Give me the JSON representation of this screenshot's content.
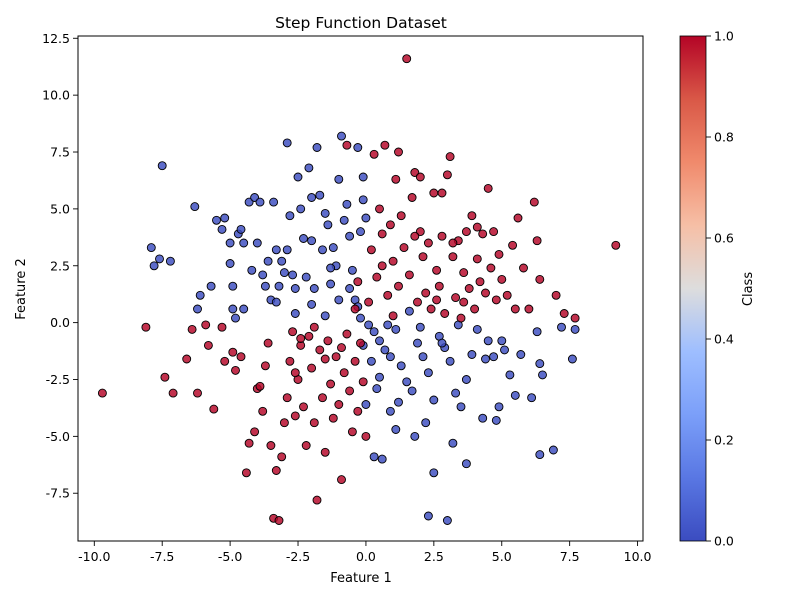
{
  "chart_data": {
    "type": "scatter",
    "title": "Step Function Dataset",
    "xlabel": "Feature 1",
    "ylabel": "Feature 2",
    "xlim": [
      -10.6,
      10.2
    ],
    "ylim": [
      -9.6,
      12.6
    ],
    "xticks": [
      -10.0,
      -7.5,
      -5.0,
      -2.5,
      0.0,
      2.5,
      5.0,
      7.5,
      10.0
    ],
    "yticks": [
      -7.5,
      -5.0,
      -2.5,
      0.0,
      2.5,
      5.0,
      7.5,
      10.0,
      12.5
    ],
    "grid": false,
    "colorbar": {
      "label": "Class",
      "colormap": "coolwarm",
      "range": [
        0.0,
        1.0
      ],
      "ticks": [
        0.0,
        0.2,
        0.4,
        0.6,
        0.8,
        1.0
      ],
      "low_color": "#3b4cc0",
      "mid_color": "#dddddd",
      "high_color": "#b40426"
    },
    "marker_edge_color": "#000000",
    "class_0_points": [
      [
        -7.5,
        6.9
      ],
      [
        -7.9,
        3.3
      ],
      [
        -7.8,
        2.5
      ],
      [
        -7.6,
        2.8
      ],
      [
        -7.2,
        2.7
      ],
      [
        -6.3,
        5.1
      ],
      [
        -6.1,
        1.2
      ],
      [
        -6.2,
        0.6
      ],
      [
        -5.7,
        1.6
      ],
      [
        -5.5,
        4.5
      ],
      [
        -5.3,
        4.1
      ],
      [
        -5.2,
        4.6
      ],
      [
        -5.0,
        3.5
      ],
      [
        -5.0,
        2.6
      ],
      [
        -4.9,
        1.6
      ],
      [
        -4.9,
        0.6
      ],
      [
        -4.8,
        0.2
      ],
      [
        -4.7,
        3.9
      ],
      [
        -4.6,
        4.1
      ],
      [
        -4.5,
        3.5
      ],
      [
        -4.5,
        0.6
      ],
      [
        -4.3,
        5.3
      ],
      [
        -4.2,
        2.3
      ],
      [
        -4.1,
        5.5
      ],
      [
        -4.0,
        3.5
      ],
      [
        -3.9,
        5.3
      ],
      [
        -3.8,
        2.1
      ],
      [
        -3.7,
        1.6
      ],
      [
        -3.6,
        2.7
      ],
      [
        -3.5,
        1.0
      ],
      [
        -3.4,
        5.3
      ],
      [
        -3.3,
        3.2
      ],
      [
        -3.2,
        1.6
      ],
      [
        -3.1,
        2.7
      ],
      [
        -3.0,
        2.2
      ],
      [
        -2.9,
        3.2
      ],
      [
        -2.9,
        7.9
      ],
      [
        -2.8,
        4.7
      ],
      [
        -2.7,
        2.1
      ],
      [
        -2.6,
        1.5
      ],
      [
        -2.5,
        6.4
      ],
      [
        -2.4,
        5.0
      ],
      [
        -2.3,
        3.7
      ],
      [
        -2.2,
        2.0
      ],
      [
        -2.1,
        6.8
      ],
      [
        -2.0,
        5.5
      ],
      [
        -2.0,
        3.6
      ],
      [
        -1.9,
        1.5
      ],
      [
        -1.8,
        7.7
      ],
      [
        -1.7,
        5.6
      ],
      [
        -1.6,
        3.2
      ],
      [
        -1.5,
        4.8
      ],
      [
        -1.4,
        4.3
      ],
      [
        -1.3,
        1.7
      ],
      [
        -1.2,
        3.3
      ],
      [
        -1.1,
        2.5
      ],
      [
        -1.0,
        6.3
      ],
      [
        -0.9,
        8.2
      ],
      [
        -0.8,
        4.5
      ],
      [
        -0.7,
        5.2
      ],
      [
        -0.6,
        3.8
      ],
      [
        -0.5,
        2.3
      ],
      [
        -0.4,
        1.0
      ],
      [
        -0.3,
        7.7
      ],
      [
        -0.2,
        4.0
      ],
      [
        -0.1,
        6.4
      ],
      [
        -0.1,
        5.4
      ],
      [
        0.0,
        4.6
      ],
      [
        -0.3,
        0.7
      ],
      [
        -0.2,
        0.2
      ],
      [
        0.1,
        -0.1
      ],
      [
        0.3,
        -0.4
      ],
      [
        0.5,
        -0.8
      ],
      [
        0.7,
        -1.2
      ],
      [
        0.9,
        -1.5
      ],
      [
        1.1,
        -0.3
      ],
      [
        1.3,
        -1.9
      ],
      [
        1.5,
        -2.6
      ],
      [
        1.7,
        -3.0
      ],
      [
        1.9,
        -0.9
      ],
      [
        2.1,
        -1.5
      ],
      [
        2.3,
        -2.2
      ],
      [
        2.5,
        -3.4
      ],
      [
        2.7,
        -0.6
      ],
      [
        2.9,
        -1.1
      ],
      [
        3.1,
        -1.7
      ],
      [
        3.3,
        -3.1
      ],
      [
        3.5,
        -3.7
      ],
      [
        3.7,
        -2.5
      ],
      [
        3.9,
        -1.4
      ],
      [
        4.1,
        -0.3
      ],
      [
        4.3,
        -4.2
      ],
      [
        4.5,
        -0.8
      ],
      [
        4.7,
        -1.5
      ],
      [
        4.9,
        -3.7
      ],
      [
        5.1,
        -1.2
      ],
      [
        5.3,
        -2.3
      ],
      [
        5.5,
        -3.2
      ],
      [
        5.7,
        -1.4
      ],
      [
        6.1,
        -3.3
      ],
      [
        6.3,
        -0.4
      ],
      [
        6.4,
        -1.8
      ],
      [
        6.5,
        -2.3
      ],
      [
        6.9,
        -5.6
      ],
      [
        7.2,
        -0.2
      ],
      [
        7.6,
        -1.6
      ],
      [
        7.7,
        -0.3
      ],
      [
        6.4,
        -5.8
      ],
      [
        2.3,
        -8.5
      ],
      [
        3.0,
        -8.7
      ],
      [
        0.3,
        -5.9
      ],
      [
        0.6,
        -6.0
      ],
      [
        1.1,
        -4.7
      ],
      [
        1.8,
        -5.0
      ],
      [
        2.5,
        -6.6
      ],
      [
        3.2,
        -5.3
      ],
      [
        3.7,
        -6.2
      ],
      [
        4.8,
        -4.3
      ],
      [
        0.0,
        -3.6
      ],
      [
        0.4,
        -2.9
      ],
      [
        0.2,
        -1.7
      ],
      [
        -0.1,
        -1.0
      ],
      [
        0.8,
        -0.1
      ],
      [
        1.6,
        0.5
      ],
      [
        2.0,
        -0.2
      ],
      [
        2.8,
        -0.9
      ],
      [
        3.4,
        -0.1
      ],
      [
        4.4,
        -1.6
      ],
      [
        5.0,
        -0.8
      ],
      [
        -1.0,
        1.0
      ],
      [
        -1.5,
        0.3
      ],
      [
        -2.0,
        0.8
      ],
      [
        -2.6,
        0.4
      ],
      [
        -3.3,
        0.9
      ],
      [
        -1.3,
        2.4
      ],
      [
        -0.6,
        1.5
      ],
      [
        0.5,
        -2.4
      ],
      [
        1.2,
        -3.5
      ],
      [
        2.2,
        -4.4
      ],
      [
        0.9,
        -3.9
      ]
    ],
    "class_1_points": [
      [
        -9.7,
        -3.1
      ],
      [
        -8.1,
        -0.2
      ],
      [
        -7.4,
        -2.4
      ],
      [
        -7.1,
        -3.1
      ],
      [
        -6.6,
        -1.6
      ],
      [
        -6.4,
        -0.3
      ],
      [
        -6.2,
        -3.1
      ],
      [
        -5.9,
        -0.1
      ],
      [
        -5.8,
        -1.0
      ],
      [
        -5.6,
        -3.8
      ],
      [
        -5.3,
        -0.2
      ],
      [
        -5.2,
        -1.7
      ],
      [
        -4.9,
        -1.3
      ],
      [
        -4.8,
        -2.1
      ],
      [
        -4.6,
        -1.5
      ],
      [
        -4.4,
        -6.6
      ],
      [
        -4.3,
        -5.3
      ],
      [
        -4.1,
        -4.8
      ],
      [
        -4.0,
        -2.9
      ],
      [
        -3.8,
        -3.9
      ],
      [
        -3.7,
        -1.9
      ],
      [
        -3.6,
        -0.9
      ],
      [
        -3.5,
        -5.4
      ],
      [
        -3.4,
        -8.6
      ],
      [
        -3.3,
        -6.5
      ],
      [
        -3.2,
        -8.7
      ],
      [
        -3.1,
        -5.9
      ],
      [
        -3.0,
        -4.4
      ],
      [
        -2.9,
        -3.3
      ],
      [
        -2.8,
        -1.7
      ],
      [
        -2.7,
        -0.4
      ],
      [
        -2.6,
        -4.1
      ],
      [
        -2.5,
        -2.5
      ],
      [
        -2.4,
        -1.0
      ],
      [
        -2.3,
        -3.7
      ],
      [
        -2.2,
        -5.4
      ],
      [
        -2.1,
        -0.6
      ],
      [
        -2.0,
        -2.0
      ],
      [
        -1.9,
        -4.4
      ],
      [
        -1.8,
        -7.8
      ],
      [
        -1.7,
        -1.2
      ],
      [
        -1.6,
        -3.3
      ],
      [
        -1.5,
        -5.7
      ],
      [
        -1.4,
        -0.8
      ],
      [
        -1.3,
        -2.7
      ],
      [
        -1.2,
        -4.2
      ],
      [
        -1.1,
        -1.5
      ],
      [
        -1.0,
        -3.6
      ],
      [
        -0.9,
        -6.9
      ],
      [
        -0.8,
        -2.2
      ],
      [
        -0.7,
        -0.5
      ],
      [
        -0.6,
        -3.0
      ],
      [
        -0.5,
        -4.8
      ],
      [
        -0.4,
        -1.7
      ],
      [
        -0.3,
        -3.9
      ],
      [
        -0.2,
        -0.9
      ],
      [
        -0.1,
        -2.6
      ],
      [
        0.0,
        -5.0
      ],
      [
        -0.3,
        1.8
      ],
      [
        0.1,
        0.9
      ],
      [
        0.2,
        3.2
      ],
      [
        0.4,
        2.0
      ],
      [
        0.5,
        5.0
      ],
      [
        0.6,
        3.9
      ],
      [
        0.7,
        7.8
      ],
      [
        0.8,
        1.2
      ],
      [
        0.9,
        4.3
      ],
      [
        1.0,
        2.7
      ],
      [
        1.1,
        6.3
      ],
      [
        1.2,
        1.6
      ],
      [
        1.3,
        4.7
      ],
      [
        1.4,
        3.3
      ],
      [
        1.5,
        11.6
      ],
      [
        1.6,
        2.1
      ],
      [
        1.7,
        5.5
      ],
      [
        1.8,
        6.6
      ],
      [
        1.9,
        0.9
      ],
      [
        2.0,
        4.0
      ],
      [
        2.1,
        2.9
      ],
      [
        2.2,
        1.3
      ],
      [
        2.3,
        3.5
      ],
      [
        2.4,
        0.6
      ],
      [
        2.5,
        5.7
      ],
      [
        2.6,
        2.3
      ],
      [
        2.7,
        1.6
      ],
      [
        2.8,
        3.8
      ],
      [
        2.9,
        0.4
      ],
      [
        3.0,
        6.5
      ],
      [
        3.1,
        7.3
      ],
      [
        3.2,
        2.9
      ],
      [
        3.3,
        1.1
      ],
      [
        3.4,
        3.6
      ],
      [
        3.5,
        0.2
      ],
      [
        3.6,
        2.2
      ],
      [
        3.7,
        4.0
      ],
      [
        3.8,
        1.5
      ],
      [
        3.9,
        4.7
      ],
      [
        4.0,
        0.6
      ],
      [
        4.1,
        2.8
      ],
      [
        4.2,
        1.8
      ],
      [
        4.3,
        3.9
      ],
      [
        4.4,
        1.3
      ],
      [
        4.5,
        5.9
      ],
      [
        4.6,
        2.4
      ],
      [
        4.7,
        4.0
      ],
      [
        4.8,
        1.0
      ],
      [
        4.9,
        3.0
      ],
      [
        5.0,
        1.9
      ],
      [
        5.2,
        1.2
      ],
      [
        5.4,
        3.4
      ],
      [
        5.6,
        4.6
      ],
      [
        5.8,
        2.4
      ],
      [
        6.0,
        0.6
      ],
      [
        6.2,
        5.3
      ],
      [
        6.3,
        3.6
      ],
      [
        6.4,
        1.9
      ],
      [
        7.0,
        1.2
      ],
      [
        7.3,
        0.4
      ],
      [
        7.7,
        0.2
      ],
      [
        9.2,
        3.4
      ],
      [
        -0.7,
        7.8
      ],
      [
        0.3,
        7.4
      ],
      [
        1.2,
        7.5
      ],
      [
        2.0,
        6.4
      ],
      [
        2.8,
        5.7
      ],
      [
        3.2,
        3.5
      ],
      [
        4.1,
        4.2
      ],
      [
        5.5,
        0.6
      ],
      [
        -1.5,
        -1.6
      ],
      [
        -2.6,
        -2.2
      ],
      [
        -3.9,
        -2.8
      ],
      [
        -1.9,
        -0.2
      ],
      [
        -0.9,
        -1.1
      ],
      [
        -0.4,
        0.6
      ],
      [
        0.6,
        2.5
      ],
      [
        1.0,
        0.3
      ],
      [
        1.8,
        3.8
      ],
      [
        2.6,
        1.0
      ],
      [
        3.6,
        0.9
      ],
      [
        -2.4,
        -0.7
      ]
    ]
  }
}
